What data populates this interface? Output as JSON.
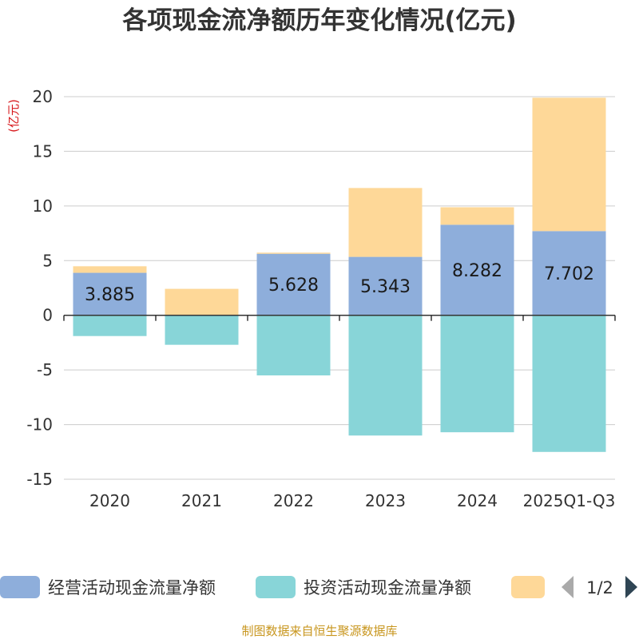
{
  "chart_data": {
    "type": "bar",
    "stacked": true,
    "title": "各项现金流净额历年变化情况(亿元)",
    "ylabel": "(亿元)",
    "xlabel": "",
    "categories": [
      "2020",
      "2021",
      "2022",
      "2023",
      "2024",
      "2025Q1-Q3"
    ],
    "ylim": [
      -15,
      20
    ],
    "yticks": [
      20,
      15,
      10,
      5,
      0,
      -5,
      -10,
      -15
    ],
    "ytick_labels": [
      "20",
      "15",
      "10",
      "5",
      "0",
      "-5",
      "-10",
      "-15"
    ],
    "grid": true,
    "series": [
      {
        "name": "经营活动现金流量净额",
        "color": "#8eaedb",
        "values": [
          3.885,
          0.02,
          5.628,
          5.343,
          8.282,
          7.702
        ],
        "labels": [
          "3.885",
          "",
          "5.628",
          "5.343",
          "8.282",
          "7.702"
        ]
      },
      {
        "name": "投资活动现金流量净额",
        "color": "#88d5d8",
        "values": [
          -1.9,
          -2.7,
          -5.5,
          -11.0,
          -10.7,
          -12.5
        ],
        "labels": [
          "",
          "",
          "",
          "",
          "",
          ""
        ]
      },
      {
        "name": "",
        "color": "#fed898",
        "values": [
          0.6,
          2.4,
          0.1,
          6.3,
          1.6,
          12.2
        ],
        "labels": [
          "",
          "",
          "",
          "",
          "",
          ""
        ]
      }
    ],
    "legend": {
      "position": "bottom",
      "items": [
        "经营活动现金流量净额",
        "投资活动现金流量净额",
        ""
      ],
      "page": "1/2"
    },
    "source": "制图数据来自恒生聚源数据库"
  }
}
